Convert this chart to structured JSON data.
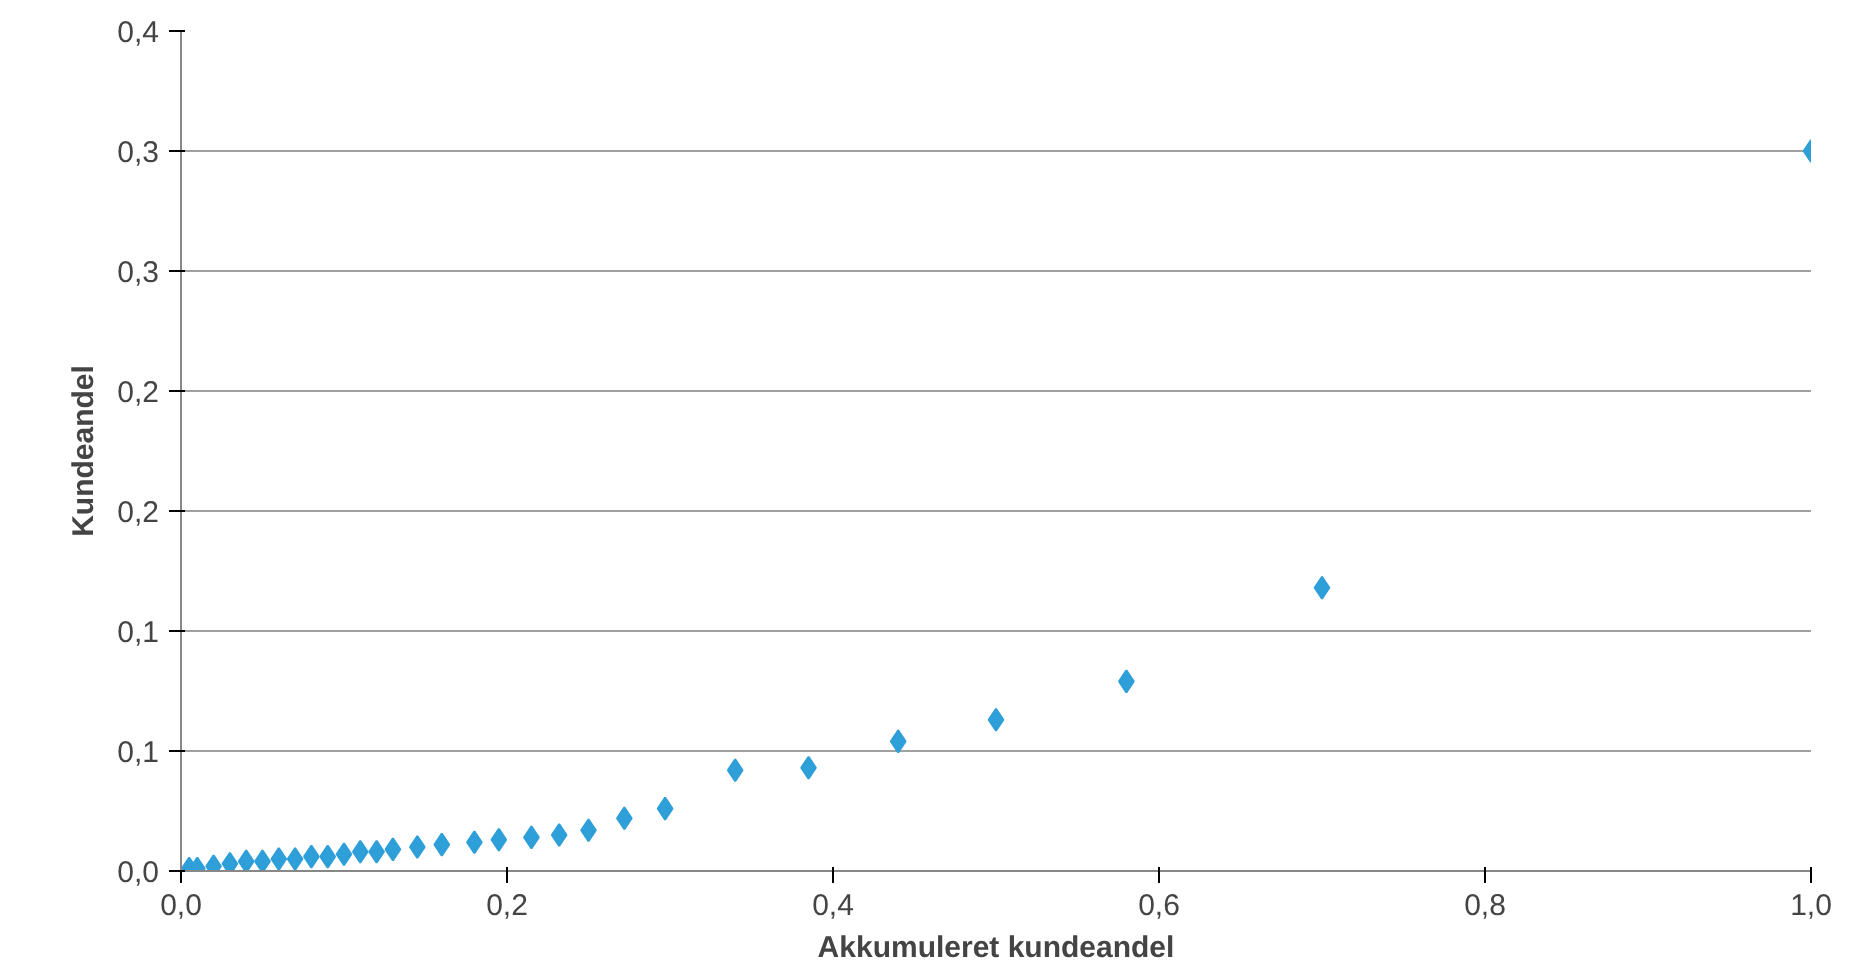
{
  "chart_data": {
    "type": "scatter",
    "xlabel": "Akkumuleret kundeandel",
    "ylabel": "Kundeandel",
    "x": [
      0.005,
      0.01,
      0.02,
      0.03,
      0.04,
      0.05,
      0.06,
      0.07,
      0.08,
      0.09,
      0.1,
      0.11,
      0.12,
      0.13,
      0.145,
      0.16,
      0.18,
      0.195,
      0.215,
      0.232,
      0.25,
      0.272,
      0.297,
      0.34,
      0.385,
      0.44,
      0.5,
      0.58,
      0.7,
      1.0
    ],
    "series": [
      {
        "color": "#2e9fd8",
        "values": [
          0.001,
          0.001,
          0.002,
          0.003,
          0.004,
          0.004,
          0.005,
          0.005,
          0.006,
          0.006,
          0.007,
          0.008,
          0.008,
          0.009,
          0.01,
          0.011,
          0.012,
          0.013,
          0.014,
          0.015,
          0.017,
          0.022,
          0.026,
          0.042,
          0.043,
          0.054,
          0.063,
          0.079,
          0.118,
          0.3
        ]
      }
    ],
    "xlim": [
      0,
      1
    ],
    "xticks": [
      {
        "value": 0,
        "label": "0,0"
      },
      {
        "value": 0.2,
        "label": "0,2"
      },
      {
        "value": 0.4,
        "label": "0,4"
      },
      {
        "value": 0.6,
        "label": "0,6"
      },
      {
        "value": 0.8,
        "label": "0,8"
      },
      {
        "value": 1,
        "label": "1,0"
      }
    ],
    "ylim": [
      0,
      0.35
    ],
    "yticks": [
      {
        "value": 0,
        "label": "0,0"
      },
      {
        "value": 0.05,
        "label": "0,1"
      },
      {
        "value": 0.1,
        "label": "0,1"
      },
      {
        "value": 0.15,
        "label": "0,2"
      },
      {
        "value": 0.2,
        "label": "0,2"
      },
      {
        "value": 0.25,
        "label": "0,3"
      },
      {
        "value": 0.3,
        "label": "0,3"
      },
      {
        "value": 0.35,
        "label": "0,4"
      }
    ],
    "grid": "y",
    "marker": "diamond"
  }
}
